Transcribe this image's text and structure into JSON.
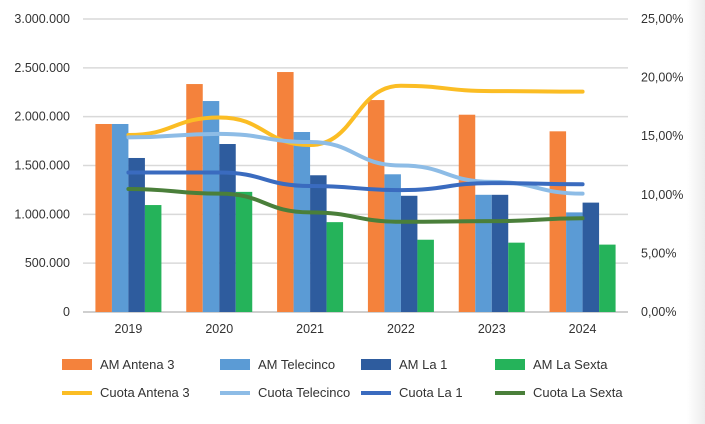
{
  "chart_data": {
    "type": "bar",
    "categories": [
      "2019",
      "2020",
      "2021",
      "2022",
      "2023",
      "2024"
    ],
    "y_left": {
      "ylim": [
        0,
        3000000
      ],
      "ticks": [
        0,
        500000,
        1000000,
        1500000,
        2000000,
        2500000,
        3000000
      ],
      "tick_labels": [
        "0",
        "500.000",
        "1.000.000",
        "1.500.000",
        "2.000.000",
        "2.500.000",
        "3.000.000"
      ]
    },
    "y_right": {
      "ylim": [
        0,
        25
      ],
      "ticks": [
        0,
        5,
        10,
        15,
        20,
        25
      ],
      "tick_labels": [
        "0,00%",
        "5,00%",
        "10,00%",
        "15,00%",
        "20,00%",
        "25,00%"
      ]
    },
    "grid": true,
    "legend_position": "bottom",
    "bar_series": [
      {
        "name": "AM Antena 3",
        "color": "#f4823c",
        "values": [
          1925000,
          2334000,
          2457000,
          2170000,
          2020000,
          1850000
        ]
      },
      {
        "name": "AM Telecinco",
        "color": "#5b9bd5",
        "values": [
          1925000,
          2160000,
          1843000,
          1410000,
          1200000,
          1020000
        ]
      },
      {
        "name": "AM La 1",
        "color": "#2e5c9e",
        "values": [
          1577000,
          1720000,
          1400000,
          1190000,
          1200000,
          1120000
        ]
      },
      {
        "name": "AM La Sexta",
        "color": "#25b35a",
        "values": [
          1095000,
          1230000,
          920000,
          740000,
          710000,
          690000
        ]
      }
    ],
    "line_series": [
      {
        "name": "Cuota Antena 3",
        "color": "#fbbd24",
        "axis": "right",
        "values": [
          15.1,
          16.6,
          14.25,
          19.3,
          18.85,
          18.8
        ]
      },
      {
        "name": "Cuota Telecinco",
        "color": "#8dbce6",
        "axis": "right",
        "values": [
          14.9,
          15.2,
          14.5,
          12.5,
          11.1,
          10.1
        ]
      },
      {
        "name": "Cuota La 1",
        "color": "#3a6bbf",
        "axis": "right",
        "values": [
          11.9,
          11.9,
          10.75,
          10.4,
          11.0,
          10.9
        ]
      },
      {
        "name": "Cuota La Sexta",
        "color": "#4a7f3a",
        "axis": "right",
        "values": [
          10.5,
          10.1,
          8.5,
          7.7,
          7.75,
          8.0
        ]
      }
    ]
  }
}
